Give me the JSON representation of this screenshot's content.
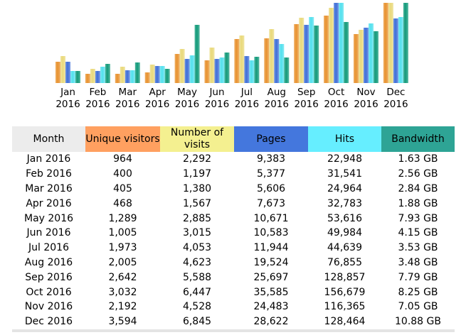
{
  "chart_data": {
    "type": "bar",
    "categories": [
      "Jan 2016",
      "Feb 2016",
      "Mar 2016",
      "Apr 2016",
      "May 2016",
      "Jun 2016",
      "Jul 2016",
      "Aug 2016",
      "Sep 2016",
      "Oct 2016",
      "Nov 2016",
      "Dec 2016"
    ],
    "month_labels": [
      [
        "Jan",
        "2016"
      ],
      [
        "Feb",
        "2016"
      ],
      [
        "Mar",
        "2016"
      ],
      [
        "Apr",
        "2016"
      ],
      [
        "May",
        "2016"
      ],
      [
        "Jun",
        "2016"
      ],
      [
        "Jul",
        "2016"
      ],
      [
        "Aug",
        "2016"
      ],
      [
        "Sep",
        "2016"
      ],
      [
        "Oct",
        "2016"
      ],
      [
        "Nov",
        "2016"
      ],
      [
        "Dec",
        "2016"
      ]
    ],
    "series": [
      {
        "key": "unique_visitors",
        "color": "#e8922f",
        "values": [
          964,
          400,
          405,
          468,
          1289,
          1005,
          1973,
          2005,
          2642,
          3032,
          2192,
          3594
        ]
      },
      {
        "key": "visits",
        "color": "#e9d97a",
        "values": [
          2292,
          1197,
          1380,
          1567,
          2885,
          3015,
          4053,
          4623,
          5588,
          6447,
          4528,
          6845
        ]
      },
      {
        "key": "pages",
        "color": "#3f6fd8",
        "values": [
          9383,
          5377,
          5606,
          7673,
          10671,
          10583,
          11944,
          19524,
          25697,
          35585,
          24483,
          28622
        ]
      },
      {
        "key": "hits",
        "color": "#52e0ee",
        "values": [
          22948,
          31541,
          24964,
          32783,
          53616,
          49984,
          44639,
          76855,
          128857,
          156679,
          116365,
          128464
        ]
      },
      {
        "key": "bandwidth_gb",
        "color": "#129a7a",
        "values": [
          1.63,
          2.56,
          2.84,
          1.88,
          7.93,
          4.15,
          3.53,
          3.48,
          7.79,
          8.25,
          7.05,
          10.88
        ]
      }
    ]
  },
  "table": {
    "headers": {
      "month": "Month",
      "visitors": "Unique visitors",
      "visits": "Number of visits",
      "pages": "Pages",
      "hits": "Hits",
      "bandwidth": "Bandwidth"
    },
    "rows": [
      [
        "Jan 2016",
        "964",
        "2,292",
        "9,383",
        "22,948",
        "1.63 GB"
      ],
      [
        "Feb 2016",
        "400",
        "1,197",
        "5,377",
        "31,541",
        "2.56 GB"
      ],
      [
        "Mar 2016",
        "405",
        "1,380",
        "5,606",
        "24,964",
        "2.84 GB"
      ],
      [
        "Apr 2016",
        "468",
        "1,567",
        "7,673",
        "32,783",
        "1.88 GB"
      ],
      [
        "May 2016",
        "1,289",
        "2,885",
        "10,671",
        "53,616",
        "7.93 GB"
      ],
      [
        "Jun 2016",
        "1,005",
        "3,015",
        "10,583",
        "49,984",
        "4.15 GB"
      ],
      [
        "Jul 2016",
        "1,973",
        "4,053",
        "11,944",
        "44,639",
        "3.53 GB"
      ],
      [
        "Aug 2016",
        "2,005",
        "4,623",
        "19,524",
        "76,855",
        "3.48 GB"
      ],
      [
        "Sep 2016",
        "2,642",
        "5,588",
        "25,697",
        "128,857",
        "7.79 GB"
      ],
      [
        "Oct 2016",
        "3,032",
        "6,447",
        "35,585",
        "156,679",
        "8.25 GB"
      ],
      [
        "Nov 2016",
        "2,192",
        "4,528",
        "24,483",
        "116,365",
        "7.05 GB"
      ],
      [
        "Dec 2016",
        "3,594",
        "6,845",
        "28,622",
        "128,464",
        "10.88 GB"
      ]
    ]
  }
}
